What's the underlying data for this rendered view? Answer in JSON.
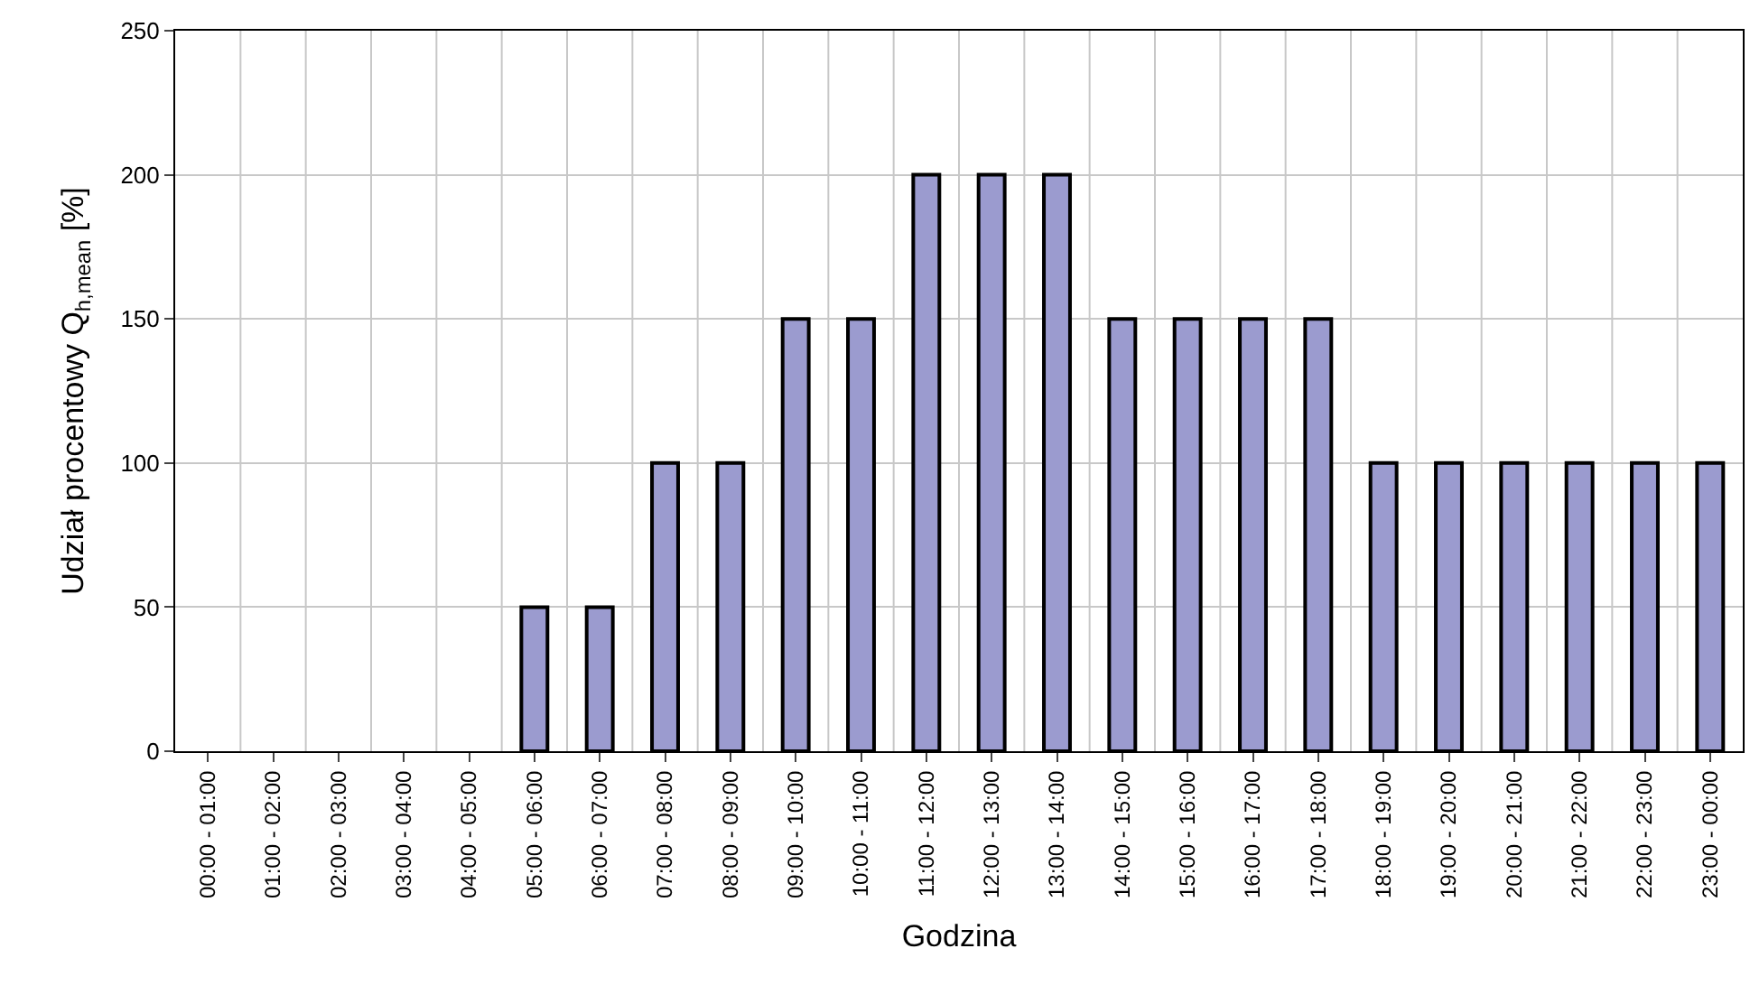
{
  "chart_data": {
    "type": "bar",
    "xlabel": "Godzina",
    "ylabel": "Udział procentowy Q$_{h,mean}$ [%]",
    "categories": [
      "00:00 - 01:00",
      "01:00 - 02:00",
      "02:00 - 03:00",
      "03:00 - 04:00",
      "04:00 - 05:00",
      "05:00 - 06:00",
      "06:00 - 07:00",
      "07:00 - 08:00",
      "08:00 - 09:00",
      "09:00 - 10:00",
      "10:00 - 11:00",
      "11:00 - 12:00",
      "12:00 - 13:00",
      "13:00 - 14:00",
      "14:00 - 15:00",
      "15:00 - 16:00",
      "16:00 - 17:00",
      "17:00 - 18:00",
      "18:00 - 19:00",
      "19:00 - 20:00",
      "20:00 - 21:00",
      "21:00 - 22:00",
      "22:00 - 23:00",
      "23:00 - 00:00"
    ],
    "values": [
      0,
      0,
      0,
      0,
      0,
      50,
      50,
      100,
      100,
      150,
      150,
      200,
      200,
      200,
      150,
      150,
      150,
      150,
      100,
      100,
      100,
      100,
      100,
      100
    ],
    "color": "#9b9bcf",
    "ylim": [
      0,
      250
    ],
    "yticks": [
      0,
      50,
      100,
      150,
      200,
      250
    ],
    "grid": true,
    "legend": false
  }
}
